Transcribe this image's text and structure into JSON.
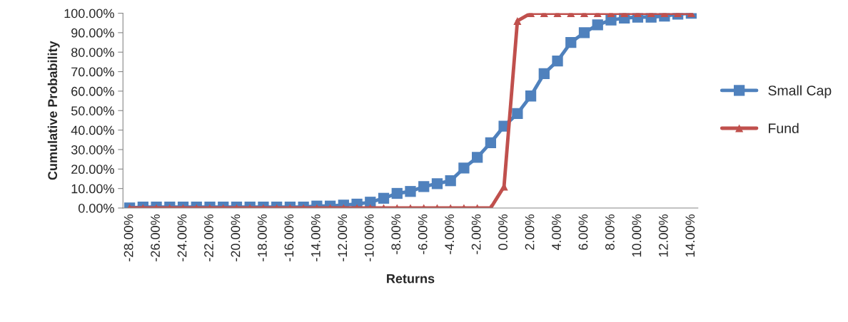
{
  "chart_data": {
    "type": "line",
    "xlabel": "Returns",
    "ylabel": "Cumulative Probability",
    "categories": [
      "-28.00%",
      null,
      "-26.00%",
      null,
      "-24.00%",
      null,
      "-22.00%",
      null,
      "-20.00%",
      null,
      "-18.00%",
      null,
      "-16.00%",
      null,
      "-14.00%",
      null,
      "-12.00%",
      null,
      "-10.00%",
      null,
      "-8.00%",
      null,
      "-6.00%",
      null,
      "-4.00%",
      null,
      "-2.00%",
      null,
      "0.00%",
      null,
      "2.00%",
      null,
      "4.00%",
      null,
      "6.00%",
      null,
      "8.00%",
      null,
      "10.00%",
      null,
      "12.00%",
      null,
      "14.00%"
    ],
    "series": [
      {
        "name": "Small Cap",
        "color": "#4f81bd",
        "marker": "square",
        "values": [
          0,
          0.5,
          0.5,
          0.5,
          0.5,
          0.5,
          0.5,
          0.5,
          0.5,
          0.5,
          0.5,
          0.5,
          0.5,
          0.5,
          1,
          1,
          1.5,
          2,
          3,
          5,
          7.5,
          8.5,
          11,
          12.5,
          14,
          20.5,
          26,
          33.5,
          42,
          48.5,
          57.5,
          69,
          75.5,
          85,
          90,
          94,
          96.5,
          97.5,
          98,
          98,
          98.5,
          99.5,
          100
        ]
      },
      {
        "name": "Fund",
        "color": "#c0504d",
        "marker": "triangle",
        "values": [
          0,
          0,
          0,
          0,
          0,
          0,
          0,
          0,
          0,
          0,
          0,
          0,
          0,
          0,
          0,
          0,
          0,
          0,
          0,
          0,
          0,
          0,
          0,
          0,
          0,
          0,
          0,
          0,
          11,
          96,
          100,
          100,
          100,
          100,
          100,
          100,
          100,
          100,
          100,
          100,
          100,
          100,
          100
        ]
      }
    ],
    "ylim": [
      0,
      100
    ],
    "yticks": [
      {
        "value": 0,
        "label": "0.00%"
      },
      {
        "value": 10,
        "label": "10.00%"
      },
      {
        "value": 20,
        "label": "20.00%"
      },
      {
        "value": 30,
        "label": "30.00%"
      },
      {
        "value": 40,
        "label": "40.00%"
      },
      {
        "value": 50,
        "label": "50.00%"
      },
      {
        "value": 60,
        "label": "60.00%"
      },
      {
        "value": 70,
        "label": "70.00%"
      },
      {
        "value": 80,
        "label": "80.00%"
      },
      {
        "value": 90,
        "label": "90.00%"
      },
      {
        "value": 100,
        "label": "100.00%"
      }
    ],
    "grid": false,
    "legend": "right",
    "line_style": "solid"
  }
}
